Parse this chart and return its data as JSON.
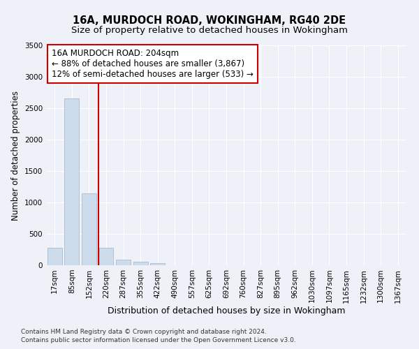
{
  "title1": "16A, MURDOCH ROAD, WOKINGHAM, RG40 2DE",
  "title2": "Size of property relative to detached houses in Wokingham",
  "xlabel": "Distribution of detached houses by size in Wokingham",
  "ylabel": "Number of detached properties",
  "footer1": "Contains HM Land Registry data © Crown copyright and database right 2024.",
  "footer2": "Contains public sector information licensed under the Open Government Licence v3.0.",
  "bin_labels": [
    "17sqm",
    "85sqm",
    "152sqm",
    "220sqm",
    "287sqm",
    "355sqm",
    "422sqm",
    "490sqm",
    "557sqm",
    "625sqm",
    "692sqm",
    "760sqm",
    "827sqm",
    "895sqm",
    "962sqm",
    "1030sqm",
    "1097sqm",
    "1165sqm",
    "1232sqm",
    "1300sqm",
    "1367sqm"
  ],
  "bar_values": [
    280,
    2650,
    1150,
    280,
    90,
    55,
    30,
    0,
    0,
    0,
    0,
    0,
    0,
    0,
    0,
    0,
    0,
    0,
    0,
    0,
    0
  ],
  "bar_color": "#ccdcec",
  "bar_edgecolor": "#aabccc",
  "vline_x": 2.55,
  "vline_color": "#cc0000",
  "ylim": [
    0,
    3500
  ],
  "yticks": [
    0,
    500,
    1000,
    1500,
    2000,
    2500,
    3000,
    3500
  ],
  "annotation_text": "16A MURDOCH ROAD: 204sqm\n← 88% of detached houses are smaller (3,867)\n12% of semi-detached houses are larger (533) →",
  "annotation_box_color": "#ffffff",
  "annotation_border_color": "#cc0000",
  "background_color": "#eef2f8",
  "grid_color": "#ffffff",
  "title1_fontsize": 10.5,
  "title2_fontsize": 9.5,
  "xlabel_fontsize": 9,
  "ylabel_fontsize": 8.5,
  "annot_fontsize": 8.5,
  "tick_fontsize": 7.5,
  "footer_fontsize": 6.5
}
